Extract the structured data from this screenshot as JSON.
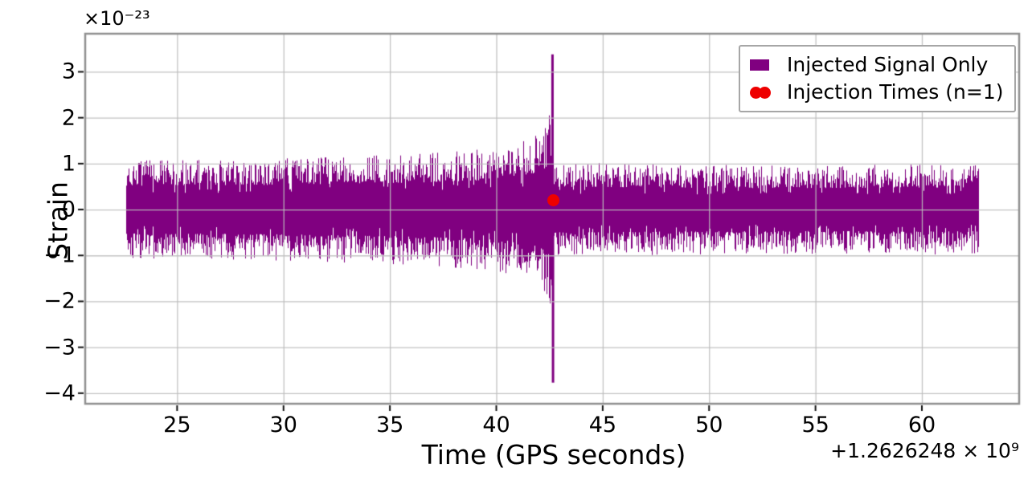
{
  "figure": {
    "background": "#ffffff",
    "accent_colors": {
      "signal": "#800080",
      "marker": "#ee0000",
      "grid": "#bdbdbd",
      "spine": "#909090",
      "tick": "#111111"
    }
  },
  "axes": {
    "ylabel": "Strain",
    "xlabel": "Time (GPS seconds)",
    "y_scale_label": "×10⁻²³",
    "x_offset_label": "+1.2626248 × 10⁹"
  },
  "legend": {
    "position": "upper right",
    "entries": [
      {
        "label": "Injected Signal Only",
        "marker": "square",
        "color": "#800080"
      },
      {
        "label": "Injection Times (n=1)",
        "marker": "double-dot",
        "color": "#ee0000"
      }
    ]
  },
  "chart_data": {
    "type": "line",
    "title": "",
    "xlabel": "Time (GPS seconds)",
    "ylabel": "Strain",
    "y_scale_factor": "1e-23",
    "y_scale_label": "×10⁻²³",
    "x_offset_label": "+1.2626248 × 10⁹",
    "xlim": [
      20.68,
      64.57
    ],
    "ylim": [
      -4.23,
      3.83
    ],
    "xticks": [
      25,
      30,
      35,
      40,
      45,
      50,
      55,
      60
    ],
    "yticks": [
      3,
      2,
      1,
      0,
      -1,
      -2,
      -3,
      -4
    ],
    "grid": true,
    "series": [
      {
        "name": "Injected Signal Only",
        "kind": "filled-waveform",
        "color": "#800080",
        "t_start": 22.62,
        "t_end": 62.65,
        "envelope": [
          [
            22.62,
            1.0
          ],
          [
            25,
            1.0
          ],
          [
            28,
            1.02
          ],
          [
            31,
            1.05
          ],
          [
            34,
            1.1
          ],
          [
            36,
            1.12
          ],
          [
            38,
            1.18
          ],
          [
            40,
            1.25
          ],
          [
            41,
            1.35
          ],
          [
            41.8,
            1.5
          ],
          [
            42.3,
            1.7
          ],
          [
            42.5,
            1.95
          ],
          [
            42.62,
            2.4
          ],
          [
            42.65,
            1.3
          ],
          [
            42.72,
            0.95
          ],
          [
            44,
            0.95
          ],
          [
            48,
            0.92
          ],
          [
            52,
            0.9
          ],
          [
            56,
            0.9
          ],
          [
            60,
            0.92
          ],
          [
            62.65,
            0.9
          ]
        ],
        "merger_spike": {
          "t_peak": 42.64,
          "peak": 3.38,
          "t_trough": 42.665,
          "trough": -3.77
        },
        "typical_amplitude_pre_merger": 0.85,
        "typical_amplitude_post_merger": 0.72
      },
      {
        "name": "Injection Times (n=1)",
        "kind": "scatter",
        "color": "#ee0000",
        "n_injections": 1,
        "points": [
          [
            42.67,
            0.2
          ]
        ]
      }
    ]
  }
}
